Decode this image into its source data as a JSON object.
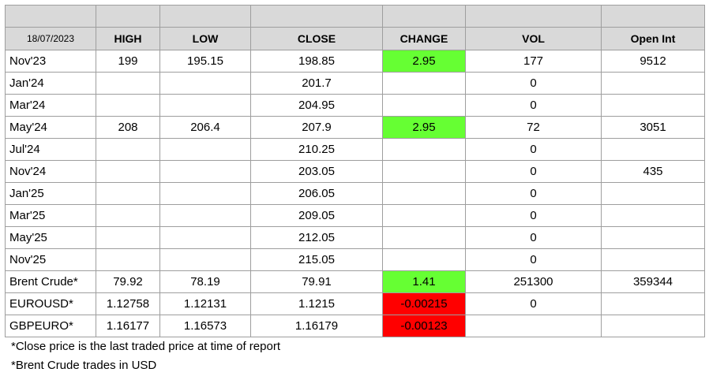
{
  "table": {
    "date": "18/07/2023",
    "headers": [
      "HIGH",
      "LOW",
      "CLOSE",
      "CHANGE",
      "VOL",
      "Open Int"
    ],
    "rows": [
      {
        "contract": "Nov'23",
        "high": "199",
        "low": "195.15",
        "close": "198.85",
        "change": "2.95",
        "change_status": "positive",
        "vol": "177",
        "open_int": "9512"
      },
      {
        "contract": "Jan'24",
        "high": "",
        "low": "",
        "close": "201.7",
        "change": "",
        "change_status": "none",
        "vol": "0",
        "open_int": ""
      },
      {
        "contract": "Mar'24",
        "high": "",
        "low": "",
        "close": "204.95",
        "change": "",
        "change_status": "none",
        "vol": "0",
        "open_int": ""
      },
      {
        "contract": "May'24",
        "high": "208",
        "low": "206.4",
        "close": "207.9",
        "change": "2.95",
        "change_status": "positive",
        "vol": "72",
        "open_int": "3051"
      },
      {
        "contract": "Jul'24",
        "high": "",
        "low": "",
        "close": "210.25",
        "change": "",
        "change_status": "none",
        "vol": "0",
        "open_int": ""
      },
      {
        "contract": "Nov'24",
        "high": "",
        "low": "",
        "close": "203.05",
        "change": "",
        "change_status": "none",
        "vol": "0",
        "open_int": "435"
      },
      {
        "contract": "Jan'25",
        "high": "",
        "low": "",
        "close": "206.05",
        "change": "",
        "change_status": "none",
        "vol": "0",
        "open_int": ""
      },
      {
        "contract": "Mar'25",
        "high": "",
        "low": "",
        "close": "209.05",
        "change": "",
        "change_status": "none",
        "vol": "0",
        "open_int": ""
      },
      {
        "contract": "May'25",
        "high": "",
        "low": "",
        "close": "212.05",
        "change": "",
        "change_status": "none",
        "vol": "0",
        "open_int": ""
      },
      {
        "contract": "Nov'25",
        "high": "",
        "low": "",
        "close": "215.05",
        "change": "",
        "change_status": "none",
        "vol": "0",
        "open_int": ""
      },
      {
        "contract": "Brent Crude*",
        "high": "79.92",
        "low": "78.19",
        "close": "79.91",
        "change": "1.41",
        "change_status": "positive",
        "vol": "251300",
        "open_int": "359344"
      },
      {
        "contract": "EUROUSD*",
        "high": "1.12758",
        "low": "1.12131",
        "close": "1.1215",
        "change": "-0.00215",
        "change_status": "negative",
        "vol": "0",
        "open_int": ""
      },
      {
        "contract": "GBPEURO*",
        "high": "1.16177",
        "low": "1.16573",
        "close": "1.16179",
        "change": "-0.00123",
        "change_status": "negative",
        "vol": "",
        "open_int": ""
      }
    ]
  },
  "notes": [
    "*Close price is the last traded price at time of report",
    "*Brent Crude trades in USD"
  ],
  "colors": {
    "positive_change": "#66ff33",
    "negative_change": "#ff0000",
    "header_fill": "#d9d9d9"
  }
}
